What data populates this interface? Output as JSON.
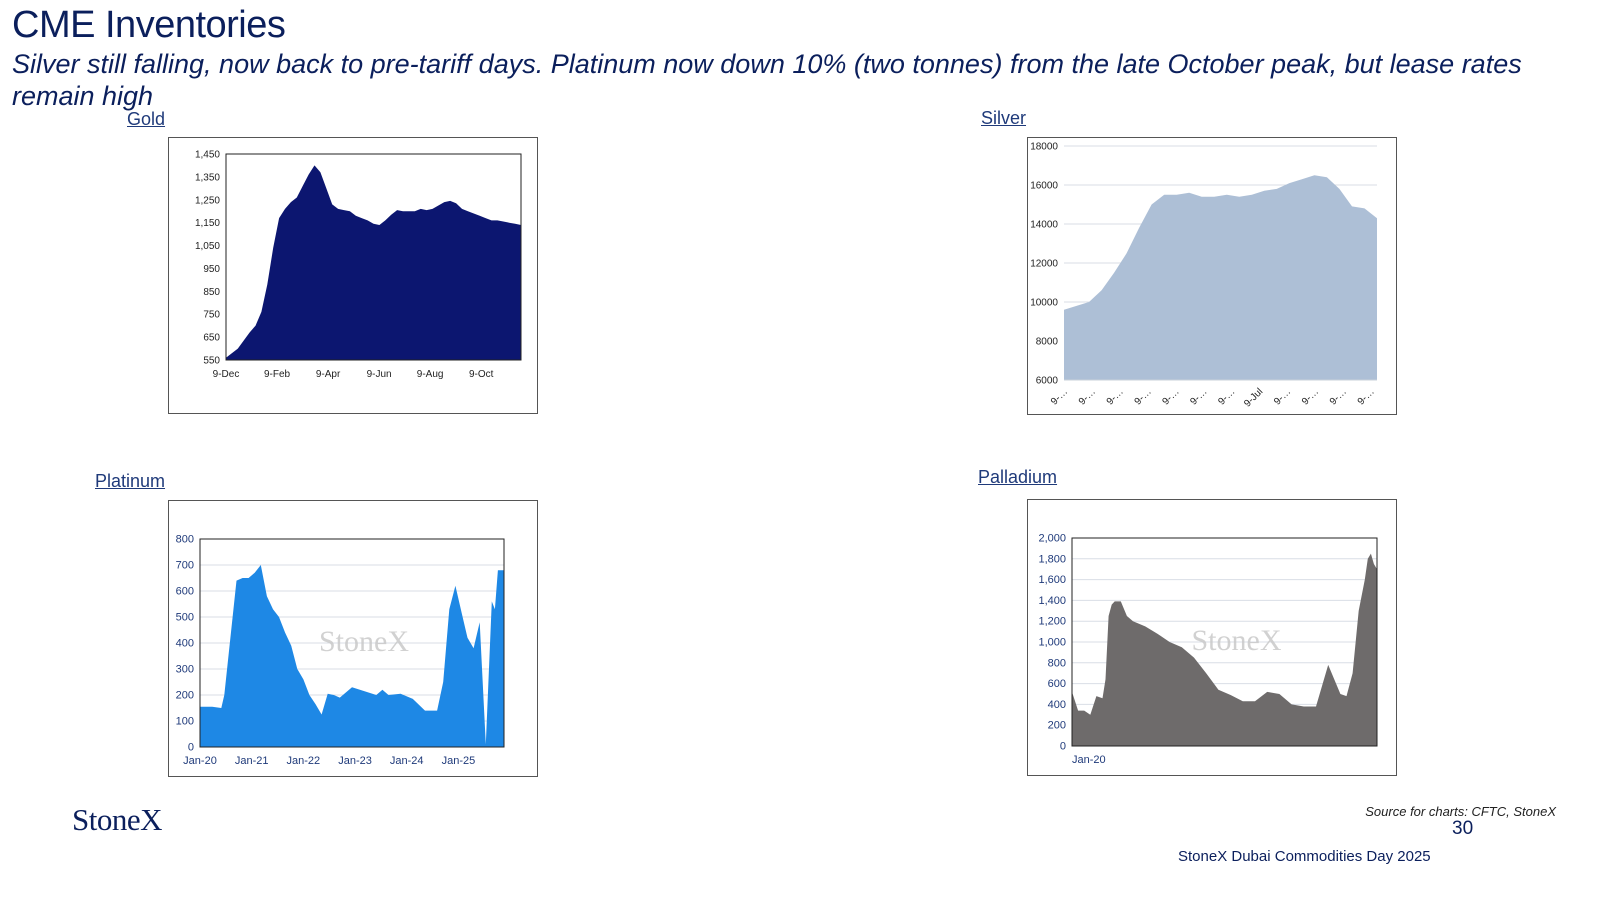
{
  "header": {
    "title": "CME Inventories",
    "subtitle": "Silver still falling, now back to pre-tariff days.  Platinum now down 10% (two tonnes) from the late October peak, but lease rates remain high"
  },
  "labels": {
    "gold": "Gold",
    "silver": "Silver",
    "platinum": "Platinum",
    "palladium": "Palladium"
  },
  "watermark": "StoneX",
  "footer": {
    "logo": "StoneX",
    "source": "Source for charts: CFTC, StoneX",
    "page": "30",
    "event": "StoneX Dubai Commodities Day 2025"
  },
  "colors": {
    "gold": "#0c1670",
    "silver": "#adbfd6",
    "platinum": "#1e88e5",
    "palladium": "#6e6b6b",
    "text": "#0b1f5c"
  },
  "chart_data": [
    {
      "id": "gold",
      "type": "area",
      "title": "Gold",
      "x_ticks": [
        "9-Dec",
        "9-Feb",
        "9-Apr",
        "9-Jun",
        "9-Aug",
        "9-Oct"
      ],
      "y_ticks": [
        "1,450",
        "1,350",
        "1,250",
        "1,150",
        "1,050",
        "950",
        "850",
        "750",
        "650",
        "550"
      ],
      "ylim": [
        550,
        1450
      ],
      "grid": false,
      "x": [
        0,
        0.04,
        0.08,
        0.1,
        0.12,
        0.14,
        0.16,
        0.18,
        0.2,
        0.22,
        0.24,
        0.26,
        0.28,
        0.3,
        0.32,
        0.34,
        0.36,
        0.38,
        0.4,
        0.42,
        0.44,
        0.46,
        0.48,
        0.5,
        0.52,
        0.54,
        0.56,
        0.58,
        0.6,
        0.62,
        0.64,
        0.66,
        0.68,
        0.7,
        0.72,
        0.74,
        0.76,
        0.78,
        0.8,
        0.82,
        0.84,
        0.86,
        0.88,
        0.9,
        0.92,
        0.94,
        0.96,
        0.98,
        1.0
      ],
      "values": [
        560,
        600,
        670,
        700,
        760,
        880,
        1040,
        1170,
        1210,
        1240,
        1260,
        1310,
        1360,
        1400,
        1370,
        1300,
        1230,
        1210,
        1205,
        1200,
        1180,
        1170,
        1160,
        1145,
        1140,
        1160,
        1185,
        1205,
        1200,
        1200,
        1200,
        1210,
        1205,
        1210,
        1225,
        1240,
        1245,
        1235,
        1210,
        1200,
        1190,
        1180,
        1170,
        1160,
        1160,
        1155,
        1150,
        1145,
        1140
      ]
    },
    {
      "id": "silver",
      "type": "area",
      "title": "Silver",
      "x_ticks": [
        "9-…",
        "9-…",
        "9-…",
        "9-…",
        "9-…",
        "9-…",
        "9-…",
        "9-Jul",
        "9-…",
        "9-…",
        "9-…",
        "9-…"
      ],
      "y_ticks": [
        "18000",
        "16000",
        "14000",
        "12000",
        "10000",
        "8000",
        "6000"
      ],
      "ylim": [
        6000,
        18000
      ],
      "grid": true,
      "x": [
        0,
        0.04,
        0.08,
        0.12,
        0.16,
        0.2,
        0.24,
        0.28,
        0.32,
        0.36,
        0.4,
        0.44,
        0.48,
        0.52,
        0.56,
        0.6,
        0.64,
        0.68,
        0.72,
        0.76,
        0.8,
        0.84,
        0.88,
        0.92,
        0.96,
        1.0
      ],
      "values": [
        9600,
        9800,
        10000,
        10600,
        11500,
        12500,
        13800,
        15000,
        15500,
        15500,
        15600,
        15400,
        15400,
        15500,
        15400,
        15500,
        15700,
        15800,
        16100,
        16300,
        16500,
        16400,
        15800,
        14900,
        14800,
        14300
      ]
    },
    {
      "id": "platinum",
      "type": "area",
      "title": "Platinum",
      "x_ticks": [
        "Jan-20",
        "Jan-21",
        "Jan-22",
        "Jan-23",
        "Jan-24",
        "Jan-25"
      ],
      "y_ticks": [
        "800",
        "700",
        "600",
        "500",
        "400",
        "300",
        "200",
        "100",
        "0"
      ],
      "ylim": [
        0,
        800
      ],
      "grid": true,
      "x": [
        0,
        0.04,
        0.07,
        0.08,
        0.1,
        0.12,
        0.14,
        0.16,
        0.18,
        0.2,
        0.22,
        0.24,
        0.26,
        0.28,
        0.3,
        0.32,
        0.34,
        0.36,
        0.38,
        0.4,
        0.42,
        0.44,
        0.46,
        0.5,
        0.54,
        0.58,
        0.6,
        0.62,
        0.66,
        0.7,
        0.74,
        0.78,
        0.8,
        0.82,
        0.84,
        0.86,
        0.88,
        0.9,
        0.92,
        0.94,
        0.96,
        0.97,
        0.98,
        1.0
      ],
      "values": [
        155,
        155,
        150,
        200,
        420,
        640,
        650,
        650,
        670,
        700,
        580,
        530,
        500,
        440,
        390,
        300,
        260,
        200,
        165,
        125,
        205,
        200,
        190,
        230,
        215,
        200,
        220,
        200,
        205,
        185,
        140,
        140,
        250,
        530,
        620,
        520,
        420,
        380,
        480,
        10,
        560,
        530,
        680,
        680
      ]
    },
    {
      "id": "palladium",
      "type": "area",
      "title": "Palladium",
      "x_ticks": [
        "Jan-20"
      ],
      "y_ticks": [
        "2,000",
        "1,800",
        "1,600",
        "1,400",
        "1,200",
        "1,000",
        "800",
        "600",
        "400",
        "200",
        "0"
      ],
      "ylim": [
        0,
        2000
      ],
      "grid": true,
      "x": [
        0,
        0.02,
        0.04,
        0.06,
        0.08,
        0.1,
        0.11,
        0.12,
        0.13,
        0.14,
        0.16,
        0.18,
        0.2,
        0.24,
        0.28,
        0.32,
        0.36,
        0.4,
        0.44,
        0.48,
        0.52,
        0.56,
        0.6,
        0.64,
        0.68,
        0.72,
        0.76,
        0.8,
        0.84,
        0.88,
        0.9,
        0.92,
        0.94,
        0.96,
        0.97,
        0.98,
        0.99,
        1.0
      ],
      "values": [
        520,
        340,
        340,
        300,
        480,
        460,
        640,
        1250,
        1360,
        1390,
        1390,
        1250,
        1200,
        1150,
        1080,
        1000,
        950,
        850,
        700,
        540,
        490,
        430,
        430,
        520,
        500,
        400,
        380,
        380,
        780,
        500,
        480,
        700,
        1300,
        1600,
        1800,
        1850,
        1750,
        1700
      ]
    }
  ]
}
